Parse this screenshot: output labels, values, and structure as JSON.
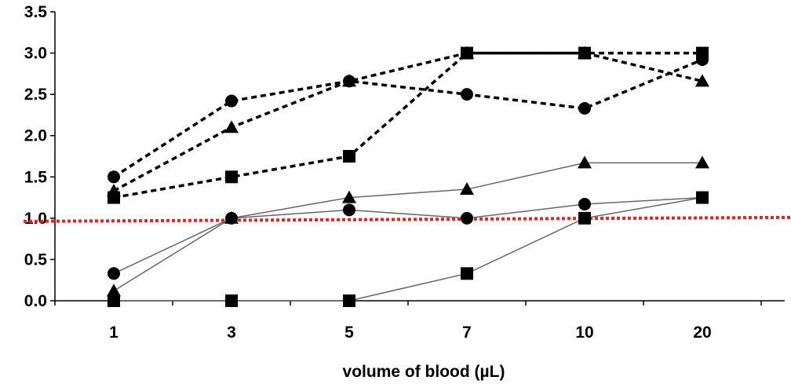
{
  "chart_data": {
    "type": "line",
    "title": "",
    "xlabel": "volume of blood (µL)",
    "ylabel": "",
    "categories": [
      "1",
      "3",
      "5",
      "7",
      "10",
      "20"
    ],
    "ylim": [
      0,
      3.5
    ],
    "yticks": [
      "0.0",
      "0.5",
      "1.0",
      "1.5",
      "2.0",
      "2.5",
      "3.0",
      "3.5"
    ],
    "grid": false,
    "legend": "none",
    "reference_line": {
      "y": 1.0,
      "color": "#e8231f",
      "style": "dotted"
    },
    "series": [
      {
        "marker": "circle",
        "style": "dashed",
        "color": "#000000",
        "values": [
          1.5,
          2.42,
          2.66,
          2.5,
          2.33,
          2.92
        ]
      },
      {
        "marker": "triangle",
        "style": "dashed",
        "color": "#000000",
        "values": [
          1.33,
          2.1,
          2.66,
          3.0,
          3.0,
          2.66
        ]
      },
      {
        "marker": "square",
        "style": "dashed",
        "color": "#000000",
        "values": [
          1.25,
          1.5,
          1.75,
          3.0,
          3.0,
          3.0
        ]
      },
      {
        "marker": "circle",
        "style": "solid",
        "color": "#666666",
        "values": [
          0.33,
          1.0,
          1.1,
          1.0,
          1.17,
          1.25
        ]
      },
      {
        "marker": "triangle",
        "style": "solid",
        "color": "#666666",
        "values": [
          0.12,
          1.0,
          1.25,
          1.35,
          1.67,
          1.67
        ]
      },
      {
        "marker": "square",
        "style": "solid",
        "color": "#666666",
        "values": [
          0.0,
          0.0,
          0.0,
          0.33,
          1.0,
          1.25
        ]
      }
    ]
  }
}
